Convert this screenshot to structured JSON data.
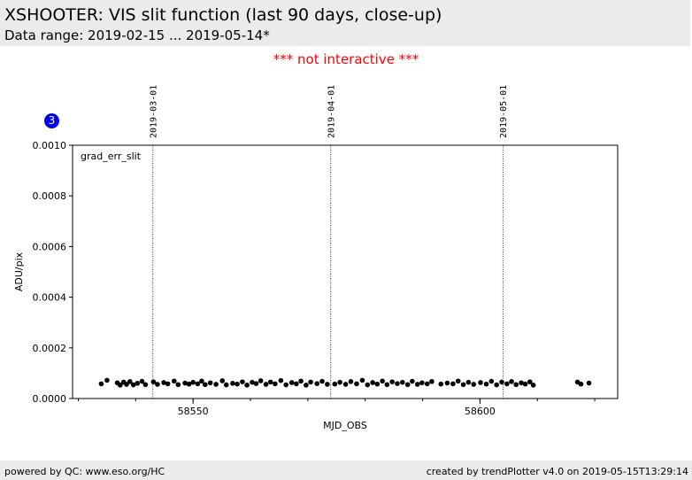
{
  "header": {
    "title": "XSHOOTER: VIS slit function (last 90 days, close-up)",
    "subtitle": "Data range: 2019-02-15 ... 2019-05-14*"
  },
  "notice": "*** not interactive ***",
  "badge": "3",
  "footer": {
    "left": "powered by QC: www.eso.org/HC",
    "right": "created by trendPlotter v4.0 on 2019-05-15T13:29:14"
  },
  "chart_data": {
    "type": "scatter",
    "title": "",
    "xlabel": "MJD_OBS",
    "ylabel": "ADU/pix",
    "annotation": "grad_err_slit",
    "xlim": [
      58529,
      58624
    ],
    "ylim": [
      0,
      0.001
    ],
    "xticks": [
      58550,
      58600
    ],
    "yticks": [
      0.0,
      0.0002,
      0.0004,
      0.0006,
      0.0008,
      0.001
    ],
    "ytick_labels": [
      "0.0000",
      "0.0002",
      "0.0004",
      "0.0006",
      "0.0008",
      "0.0010"
    ],
    "grid": false,
    "date_markers": [
      {
        "x": 58543,
        "label": "2019-03-01"
      },
      {
        "x": 58574,
        "label": "2019-04-01"
      },
      {
        "x": 58604,
        "label": "2019-05-01"
      }
    ],
    "series": [
      {
        "color": "#000000",
        "points": [
          [
            58534.0,
            5.8e-05
          ],
          [
            58535.0,
            7.2e-05
          ],
          [
            58536.8,
            6.2e-05
          ],
          [
            58537.3,
            5.3e-05
          ],
          [
            58537.9,
            6.5e-05
          ],
          [
            58538.4,
            5.6e-05
          ],
          [
            58539.0,
            6.7e-05
          ],
          [
            58539.6,
            5.4e-05
          ],
          [
            58540.3,
            6e-05
          ],
          [
            58541.1,
            6.8e-05
          ],
          [
            58541.7,
            5.5e-05
          ],
          [
            58543.1,
            6.6e-05
          ],
          [
            58543.8,
            5.6e-05
          ],
          [
            58544.9,
            6.3e-05
          ],
          [
            58545.6,
            5.8e-05
          ],
          [
            58546.7,
            6.9e-05
          ],
          [
            58547.4,
            5.5e-05
          ],
          [
            58548.6,
            6.1e-05
          ],
          [
            58549.3,
            5.7e-05
          ],
          [
            58550.0,
            6.4e-05
          ],
          [
            58550.8,
            5.8e-05
          ],
          [
            58551.5,
            6.9e-05
          ],
          [
            58552.1,
            5.5e-05
          ],
          [
            58553.0,
            6.2e-05
          ],
          [
            58554.0,
            5.6e-05
          ],
          [
            58555.1,
            7e-05
          ],
          [
            58555.8,
            5.4e-05
          ],
          [
            58556.9,
            6e-05
          ],
          [
            58557.7,
            5.7e-05
          ],
          [
            58558.6,
            6.6e-05
          ],
          [
            58559.4,
            5.3e-05
          ],
          [
            58560.3,
            6.4e-05
          ],
          [
            58561.0,
            5.9e-05
          ],
          [
            58561.8,
            7e-05
          ],
          [
            58562.7,
            5.6e-05
          ],
          [
            58563.5,
            6.5e-05
          ],
          [
            58564.3,
            5.8e-05
          ],
          [
            58565.3,
            7.1e-05
          ],
          [
            58566.2,
            5.4e-05
          ],
          [
            58567.2,
            6.3e-05
          ],
          [
            58568.0,
            5.8e-05
          ],
          [
            58568.8,
            6.9e-05
          ],
          [
            58569.7,
            5.3e-05
          ],
          [
            58570.5,
            6.5e-05
          ],
          [
            58571.6,
            5.9e-05
          ],
          [
            58572.5,
            6.8e-05
          ],
          [
            58573.4,
            5.6e-05
          ],
          [
            58574.7,
            5.7e-05
          ],
          [
            58575.6,
            6.4e-05
          ],
          [
            58576.6,
            5.6e-05
          ],
          [
            58577.5,
            6.7e-05
          ],
          [
            58578.5,
            5.8e-05
          ],
          [
            58579.5,
            7.2e-05
          ],
          [
            58580.4,
            5.4e-05
          ],
          [
            58581.3,
            6.3e-05
          ],
          [
            58582.1,
            5.7e-05
          ],
          [
            58583.0,
            6.9e-05
          ],
          [
            58583.8,
            5.5e-05
          ],
          [
            58584.7,
            6.6e-05
          ],
          [
            58585.6,
            5.9e-05
          ],
          [
            58586.5,
            6.4e-05
          ],
          [
            58587.4,
            5.5e-05
          ],
          [
            58588.2,
            6.8e-05
          ],
          [
            58589.1,
            5.6e-05
          ],
          [
            58589.9,
            6.2e-05
          ],
          [
            58590.8,
            5.8e-05
          ],
          [
            58591.6,
            6.7e-05
          ],
          [
            58593.2,
            5.7e-05
          ],
          [
            58594.3,
            6.1e-05
          ],
          [
            58595.3,
            5.8e-05
          ],
          [
            58596.2,
            6.9e-05
          ],
          [
            58597.1,
            5.5e-05
          ],
          [
            58598.0,
            6.4e-05
          ],
          [
            58598.9,
            5.6e-05
          ],
          [
            58600.1,
            6.3e-05
          ],
          [
            58601.1,
            5.7e-05
          ],
          [
            58602.0,
            6.8e-05
          ],
          [
            58602.9,
            5.4e-05
          ],
          [
            58603.8,
            6.5e-05
          ],
          [
            58604.7,
            5.8e-05
          ],
          [
            58605.5,
            6.7e-05
          ],
          [
            58606.3,
            5.5e-05
          ],
          [
            58607.2,
            6.2e-05
          ],
          [
            58607.9,
            5.7e-05
          ],
          [
            58608.7,
            6.6e-05
          ],
          [
            58609.3,
            5.3e-05
          ],
          [
            58617.0,
            6.5e-05
          ],
          [
            58617.6,
            5.7e-05
          ],
          [
            58619.0,
            6.1e-05
          ]
        ]
      }
    ]
  }
}
